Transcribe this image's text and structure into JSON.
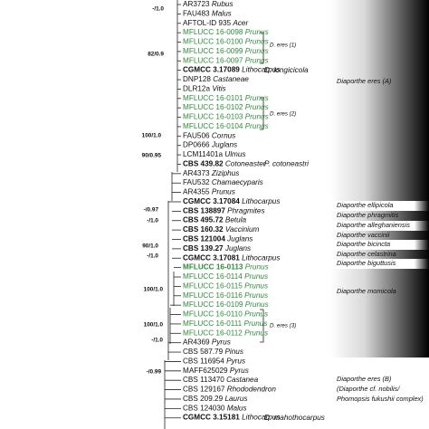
{
  "taxa": [
    {
      "id": "AR3723",
      "host": "Rubus"
    },
    {
      "id": "FAU483",
      "host": "Malus"
    },
    {
      "id": "AFTOL-ID 935",
      "host": "Acer"
    },
    {
      "id": "MFLUCC 16-0098",
      "host": "Prunus",
      "color": "#2e8b3a"
    },
    {
      "id": "MFLUCC 16-0100",
      "host": "Prunus",
      "color": "#2e8b3a"
    },
    {
      "id": "MFLUCC 16-0099",
      "host": "Prunus",
      "color": "#2e8b3a"
    },
    {
      "id": "MFLUCC 16-0097",
      "host": "Prunus",
      "color": "#2e8b3a"
    },
    {
      "id": "CGMCC 3.17089",
      "host": "Lithocarpus",
      "bold": true,
      "note": "D. longicicola"
    },
    {
      "id": "DNP128",
      "host": "Castaneae"
    },
    {
      "id": "DLR12a",
      "host": "Vitis"
    },
    {
      "id": "MFLUCC 16-0101",
      "host": "Prunus",
      "color": "#2e8b3a"
    },
    {
      "id": "MFLUCC 16-0102",
      "host": "Prunus",
      "color": "#2e8b3a"
    },
    {
      "id": "MFLUCC 16-0103",
      "host": "Prunus",
      "color": "#2e8b3a"
    },
    {
      "id": "MFLUCC 16-0104",
      "host": "Prunus",
      "color": "#2e8b3a"
    },
    {
      "id": "FAU506",
      "host": "Cornus"
    },
    {
      "id": "DP0666",
      "host": "Juglans"
    },
    {
      "id": "LCM11401a",
      "host": "Ulmus"
    },
    {
      "id": "CBS 439.82",
      "host": "Cotoneaster",
      "bold": true,
      "note": "P. cotoneastri"
    },
    {
      "id": "AR4373",
      "host": "Ziziphus"
    },
    {
      "id": "FAU532",
      "host": "Chamaecyparis"
    },
    {
      "id": "AR4355",
      "host": "Prunus"
    },
    {
      "id": "CGMCC 3.17084",
      "host": "Lithocarpus",
      "bold": true
    },
    {
      "id": "CBS 138897",
      "host": "Phragmites",
      "bold": true
    },
    {
      "id": "CBS 495.72",
      "host": "Betula",
      "bold": true
    },
    {
      "id": "CBS 160.32",
      "host": "Vaccinium",
      "bold": true
    },
    {
      "id": "CBS 121004",
      "host": "Juglans",
      "bold": true
    },
    {
      "id": "CBS 139.27",
      "host": "Juglans",
      "bold": true
    },
    {
      "id": "CGMCC 3.17081",
      "host": "Lithocarpus",
      "bold": true
    },
    {
      "id": "MFLUCC 16-0113",
      "host": "Prunus",
      "color": "#2e8b3a",
      "bold": true
    },
    {
      "id": "MFLUCC 16-0114",
      "host": "Prunus",
      "color": "#2e8b3a"
    },
    {
      "id": "MFLUCC 16-0115",
      "host": "Prunus",
      "color": "#2e8b3a"
    },
    {
      "id": "MFLUCC 16-0116",
      "host": "Prunus",
      "color": "#2e8b3a"
    },
    {
      "id": "MFLUCC 16-0109",
      "host": "Prunus",
      "color": "#2e8b3a"
    },
    {
      "id": "MFLUCC 16-0110",
      "host": "Prunus",
      "color": "#2e8b3a"
    },
    {
      "id": "MFLUCC 16-0111",
      "host": "Prunus",
      "color": "#2e8b3a"
    },
    {
      "id": "MFLUCC 16-0112",
      "host": "Prunus",
      "color": "#2e8b3a"
    },
    {
      "id": "AR4369",
      "host": "Pyrus"
    },
    {
      "id": "CBS 587.79",
      "host": "Pinus"
    },
    {
      "id": "CBS 116954",
      "host": "Pyrus"
    },
    {
      "id": "MAFF625029",
      "host": "Pyrus"
    },
    {
      "id": "CBS 113470",
      "host": "Castanea"
    },
    {
      "id": "CBS 129167",
      "host": "Rhododendron"
    },
    {
      "id": "CBS 209.29",
      "host": "Laurus"
    },
    {
      "id": "CBS 124030",
      "host": "Malus"
    },
    {
      "id": "CGMCC 3.15181",
      "host": "Lithocarpus",
      "bold": true,
      "note": "D. mahothocarpus"
    }
  ],
  "support": [
    "-/1.0",
    "82/0.9",
    "100/1.0",
    "90/0.95",
    "-/0.97",
    "-/1.0",
    "90/1.0",
    "-/1.0",
    "100/1.0",
    "100/1.0",
    "-/1.0",
    "-/0.99"
  ],
  "subclades": [
    "D. eres (1)",
    "D. eres (2)",
    "D. eres (3)"
  ],
  "clades": [
    "Diaporthe eres (A)",
    "Diaporthe ellipicola",
    "Diaporthe phragmitis",
    "Diaporthe alleghaniensis",
    "Diaporthe vaccinii",
    "Diaporthe bicincta",
    "Diaporthe celastrina",
    "Diaporthe biguttusis",
    "Diaporthe momicola",
    "Diaporthe eres (B)",
    "(Diaporthe cf. nobilis/",
    "Phomopsis fukushii complex)"
  ]
}
